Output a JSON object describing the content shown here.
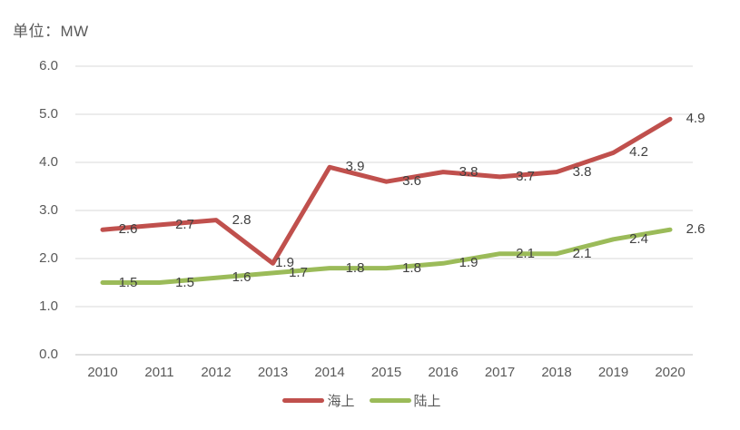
{
  "unit_label": "单位：MW",
  "chart_data": {
    "type": "line",
    "title": "",
    "unit": "MW",
    "categories": [
      "2010",
      "2011",
      "2012",
      "2013",
      "2014",
      "2015",
      "2016",
      "2017",
      "2018",
      "2019",
      "2020"
    ],
    "series": [
      {
        "name": "海上",
        "color": "#C0504D",
        "values": [
          2.6,
          2.7,
          2.8,
          1.9,
          3.9,
          3.6,
          3.8,
          3.7,
          3.8,
          4.2,
          4.9
        ]
      },
      {
        "name": "陆上",
        "color": "#9BBB59",
        "values": [
          1.5,
          1.5,
          1.6,
          1.7,
          1.8,
          1.8,
          1.9,
          2.1,
          2.1,
          2.4,
          2.6
        ]
      }
    ],
    "xlabel": "",
    "ylabel": "",
    "ylim": [
      0,
      6
    ],
    "ytick_step": 1,
    "ytick_labels": [
      "0.0",
      "1.0",
      "2.0",
      "3.0",
      "4.0",
      "5.0",
      "6.0"
    ],
    "grid": true,
    "grid_color": "#D9D9D9",
    "axis_line_color": "#BFBFBF",
    "data_labels": true,
    "legend_position": "bottom"
  }
}
